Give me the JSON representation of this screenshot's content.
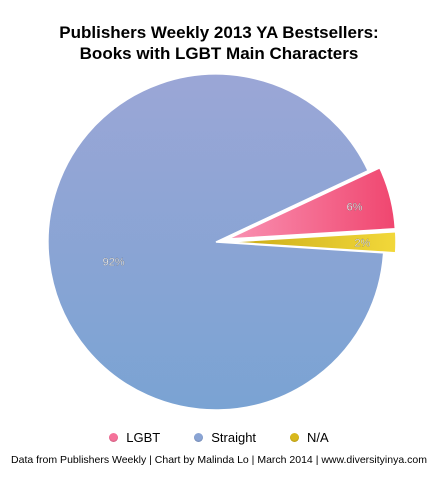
{
  "chart_data": {
    "type": "pie",
    "title": [
      "Publishers Weekly 2013 YA Bestsellers:",
      "Books with LGBT Main Characters"
    ],
    "slices": [
      {
        "label": "LGBT",
        "value": 6,
        "value_label": "6%",
        "color": "#f25b8c"
      },
      {
        "label": "Straight",
        "value": 92,
        "value_label": "92%",
        "color": "#8da5d6"
      },
      {
        "label": "N/A",
        "value": 2,
        "value_label": "2%",
        "color": "#e8c21f"
      }
    ],
    "legend_position": "bottom"
  },
  "footer": "Data from Publishers Weekly | Chart by Malinda Lo | March 2014 | www.diversityinya.com"
}
